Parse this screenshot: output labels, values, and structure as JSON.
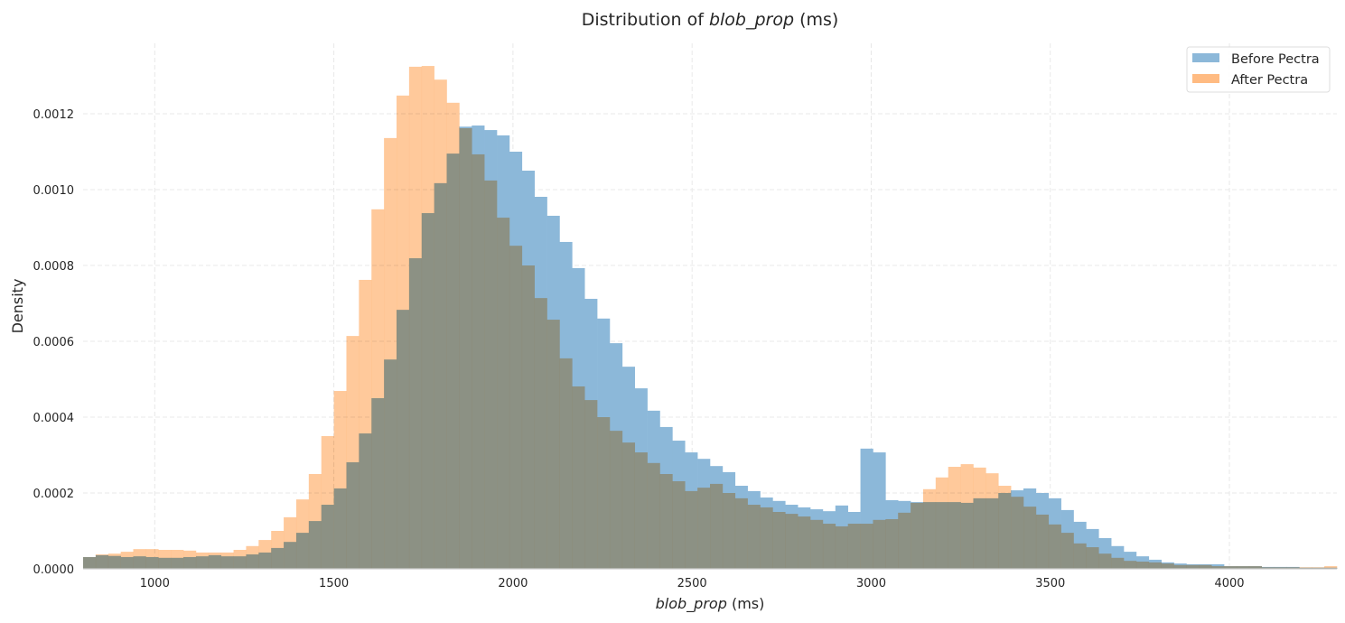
{
  "chart_data": {
    "type": "bar",
    "subtype": "histogram-overlay",
    "title": "Distribution of ",
    "title_var": "blob_prop",
    "title_unit": " (ms)",
    "xlabel_var": "blob_prop",
    "xlabel_unit": " (ms)",
    "ylabel": "Density",
    "xlim": [
      800,
      4300
    ],
    "ylim": [
      0,
      0.0014
    ],
    "bin_start": 800,
    "bin_width": 35,
    "grid": true,
    "legend_position": "top-right",
    "x_ticks": [
      1000,
      1500,
      2000,
      2500,
      3000,
      3500,
      4000
    ],
    "x_tick_labels": [
      "1000",
      "1500",
      "2000",
      "2500",
      "3000",
      "3500",
      "4000"
    ],
    "y_ticks": [
      0,
      0.0002,
      0.0004,
      0.0006,
      0.0008,
      0.001,
      0.0012
    ],
    "y_tick_labels": [
      "0.0000",
      "0.0002",
      "0.0004",
      "0.0006",
      "0.0008",
      "0.0010",
      "0.0012"
    ],
    "series": [
      {
        "name": "Before Pectra",
        "color": "#8cb8d9",
        "values": [
          3.1e-05,
          3.6e-05,
          3.4e-05,
          3.1e-05,
          3.3e-05,
          3.1e-05,
          2.9e-05,
          2.9e-05,
          3.1e-05,
          3.3e-05,
          3.6e-05,
          3.3e-05,
          3.3e-05,
          3.8e-05,
          4.3e-05,
          5.5e-05,
          7.1e-05,
          9.5e-05,
          0.000126,
          0.000169,
          0.000212,
          0.000281,
          0.000357,
          0.00045,
          0.000552,
          0.000683,
          0.000819,
          0.000938,
          0.001017,
          0.001095,
          0.001166,
          0.001169,
          0.001157,
          0.001143,
          0.0011,
          0.00105,
          0.000981,
          0.000931,
          0.000862,
          0.000793,
          0.000712,
          0.00066,
          0.000595,
          0.000533,
          0.000476,
          0.000417,
          0.000374,
          0.000338,
          0.000307,
          0.00029,
          0.000271,
          0.000255,
          0.000219,
          0.000205,
          0.000188,
          0.000179,
          0.000169,
          0.000162,
          0.000157,
          0.000152,
          0.000167,
          0.00015,
          0.000317,
          0.000307,
          0.000181,
          0.000179,
          0.000176,
          0.000176,
          0.000176,
          0.000176,
          0.000174,
          0.000186,
          0.000186,
          0.0002,
          0.000207,
          0.000212,
          0.0002,
          0.000186,
          0.000155,
          0.000124,
          0.000105,
          8.1e-05,
          6e-05,
          4.5e-05,
          3.3e-05,
          2.4e-05,
          1.7e-05,
          1.4e-05,
          1.2e-05,
          1.2e-05,
          1.2e-05,
          7e-06,
          7e-06,
          7e-06,
          5e-06,
          5e-06,
          5e-06,
          3e-06,
          3e-06,
          3e-06
        ]
      },
      {
        "name": "After Pectra",
        "color": "#ffbb82",
        "values": [
          3.1e-05,
          3.8e-05,
          4e-05,
          4.5e-05,
          5.2e-05,
          5.2e-05,
          5e-05,
          5e-05,
          4.8e-05,
          4.3e-05,
          4.3e-05,
          4.3e-05,
          5e-05,
          6e-05,
          7.6e-05,
          0.0001,
          0.000136,
          0.000183,
          0.00025,
          0.00035,
          0.000469,
          0.000614,
          0.000762,
          0.000948,
          0.001136,
          0.001248,
          0.001324,
          0.001326,
          0.00129,
          0.001229,
          0.001162,
          0.001093,
          0.001024,
          0.000926,
          0.000852,
          0.0008,
          0.000714,
          0.000657,
          0.000555,
          0.000481,
          0.000445,
          0.0004,
          0.000364,
          0.000333,
          0.000307,
          0.000279,
          0.00025,
          0.000231,
          0.000205,
          0.000214,
          0.000224,
          0.0002,
          0.000186,
          0.000169,
          0.000162,
          0.00015,
          0.000145,
          0.000138,
          0.000129,
          0.000119,
          0.000112,
          0.000119,
          0.000119,
          0.000129,
          0.000131,
          0.000148,
          0.000174,
          0.00021,
          0.000241,
          0.000269,
          0.000276,
          0.000267,
          0.000252,
          0.000219,
          0.00019,
          0.000164,
          0.000143,
          0.000117,
          9.5e-05,
          6.7e-05,
          5.7e-05,
          4e-05,
          2.9e-05,
          2.1e-05,
          1.9e-05,
          1.7e-05,
          1.4e-05,
          1e-05,
          1e-05,
          1e-05,
          7e-06,
          7e-06,
          7e-06,
          7e-06,
          4e-06,
          4e-06,
          4e-06,
          4e-06,
          4e-06,
          7e-06
        ]
      }
    ]
  }
}
